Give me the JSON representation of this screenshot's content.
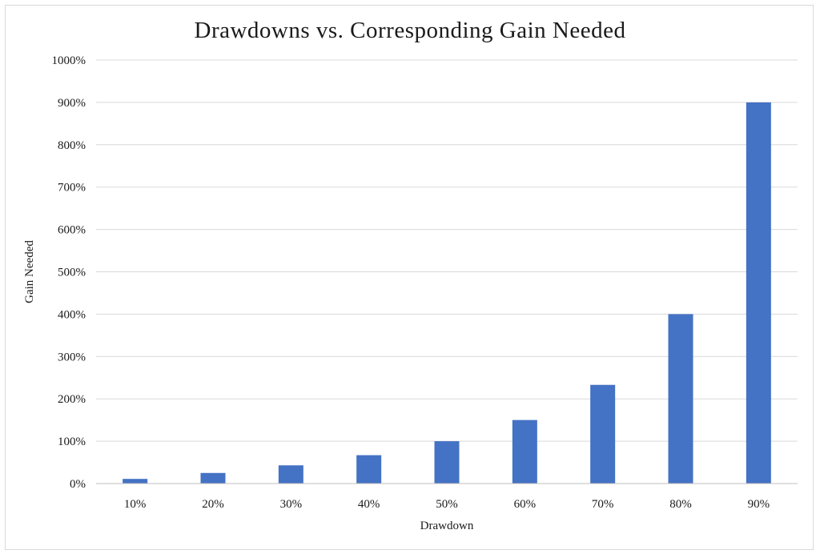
{
  "chart_data": {
    "type": "bar",
    "title": "Drawdowns vs. Corresponding Gain Needed",
    "xlabel": "Drawdown",
    "ylabel": "Gain Needed",
    "categories": [
      "10%",
      "20%",
      "30%",
      "40%",
      "50%",
      "60%",
      "70%",
      "80%",
      "90%"
    ],
    "values": [
      11,
      25,
      43,
      67,
      100,
      150,
      233,
      400,
      900
    ],
    "ylim": [
      0,
      1000
    ],
    "yticks": [
      0,
      100,
      200,
      300,
      400,
      500,
      600,
      700,
      800,
      900,
      1000
    ],
    "ytick_labels": [
      "0%",
      "100%",
      "200%",
      "300%",
      "400%",
      "500%",
      "600%",
      "700%",
      "800%",
      "900%",
      "1000%"
    ],
    "grid": true,
    "legend": "none",
    "colors": {
      "bar": "#4472c4",
      "grid": "#d9d9d9",
      "axis": "#bfbfbf"
    }
  }
}
